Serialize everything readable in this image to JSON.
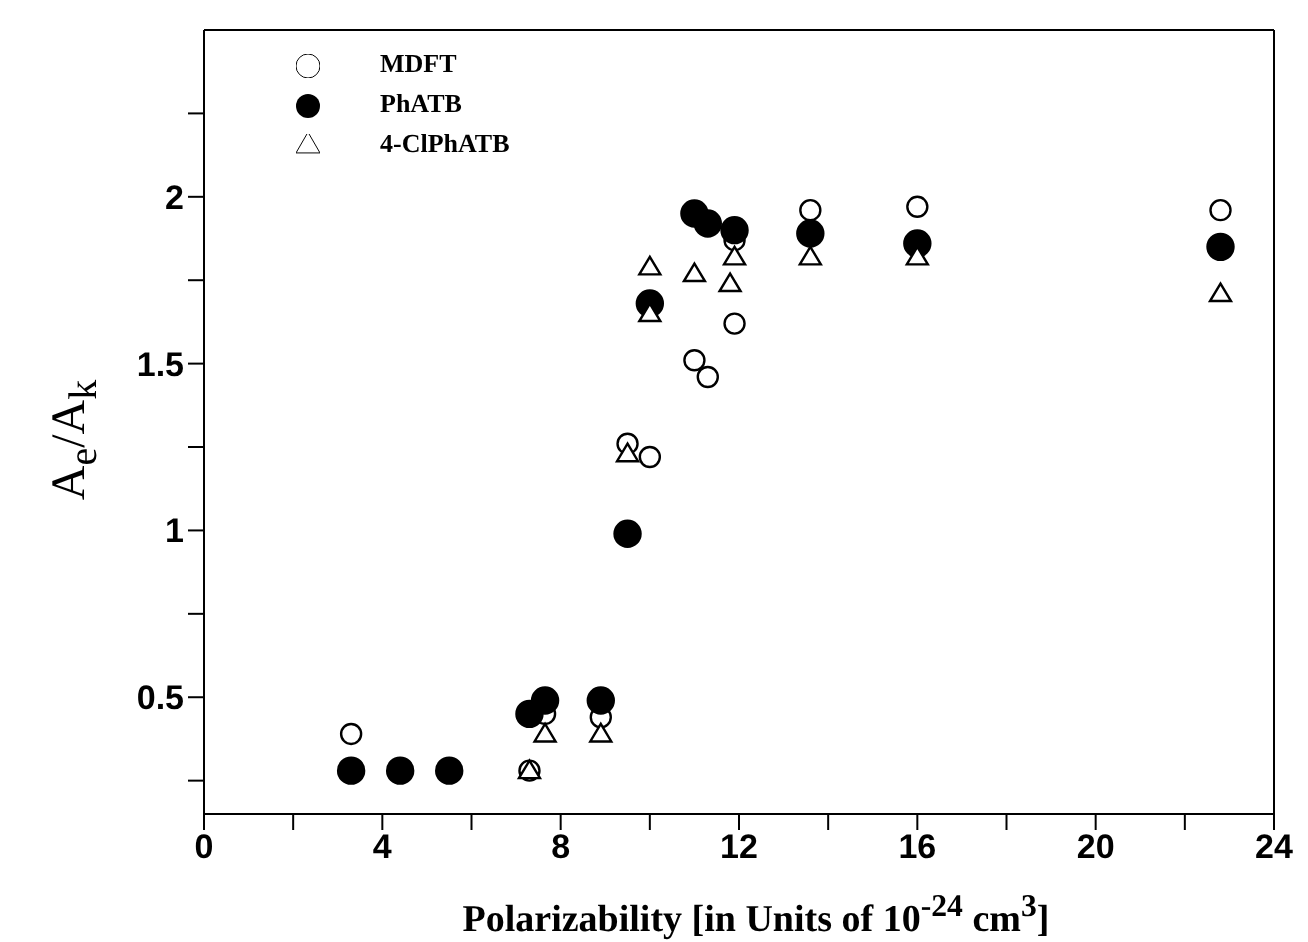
{
  "chart_data": {
    "type": "scatter",
    "xlabel": "Polarizability [in Units of 10$^{-24}$ cm$^{3}$]",
    "ylabel": "A$_{e}$/A$_{k}$",
    "xlim": [
      0,
      24
    ],
    "xticks": [
      0,
      {
        "value": 2,
        "label": null
      },
      4,
      {
        "value": 6,
        "label": null
      },
      8,
      {
        "value": 10,
        "label": null
      },
      12,
      {
        "value": 14,
        "label": null
      },
      16,
      {
        "value": 18,
        "label": null
      },
      20,
      {
        "value": 22,
        "label": null
      },
      24
    ],
    "ylim": [
      0.15,
      2.5
    ],
    "yticks": [
      {
        "value": 0.25,
        "label": null
      },
      0.5,
      {
        "value": 0.75,
        "label": null
      },
      1,
      {
        "value": 1.25,
        "label": null
      },
      1.5,
      {
        "value": 1.75,
        "label": null
      },
      2,
      {
        "value": 2.25,
        "label": null
      }
    ],
    "legend": "top left",
    "series": [
      {
        "name": "MDFT",
        "color": "#000000",
        "marker": "circle",
        "x": [
          3.3,
          7.3,
          7.65,
          8.9,
          9.5,
          10.0,
          11.0,
          11.3,
          11.9,
          11.9,
          13.6,
          16.0,
          22.8
        ],
        "values": [
          0.39,
          0.28,
          0.45,
          0.44,
          1.26,
          1.22,
          1.51,
          1.46,
          1.62,
          1.87,
          1.96,
          1.97,
          1.96
        ]
      },
      {
        "name": "PhATB",
        "color": "#000000",
        "marker": "circle",
        "x": [
          3.3,
          4.4,
          5.5,
          7.3,
          7.65,
          8.9,
          9.5,
          10.0,
          11.0,
          11.3,
          11.9,
          13.6,
          16.0,
          22.8
        ],
        "values": [
          0.28,
          0.28,
          0.28,
          0.45,
          0.49,
          0.49,
          0.99,
          1.68,
          1.95,
          1.92,
          1.9,
          1.89,
          1.86,
          1.85
        ]
      },
      {
        "name": "4-ClPhATB",
        "color": "#000000",
        "marker": "triangle",
        "x": [
          7.3,
          7.65,
          8.9,
          9.5,
          10.0,
          10.0,
          11.0,
          11.8,
          11.9,
          13.6,
          16.0,
          22.8
        ],
        "values": [
          0.28,
          0.39,
          0.39,
          1.23,
          1.65,
          1.79,
          1.77,
          1.74,
          1.82,
          1.82,
          1.82,
          1.71
        ]
      }
    ]
  }
}
